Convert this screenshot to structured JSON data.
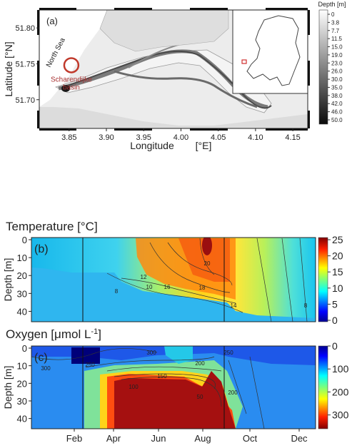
{
  "chart_data": [
    {
      "type": "heatmap",
      "panel_label": "(a)",
      "xlabel": "Longitude",
      "xlabel_unit": "[°E]",
      "ylabel": "Latitude [°N]",
      "x_ticks": [
        "3.85",
        "3.90",
        "3.95",
        "4.00",
        "4.05",
        "4.10",
        "4.15"
      ],
      "y_ticks": [
        "51.80",
        "51.75",
        "51.70"
      ],
      "xlim": [
        3.81,
        4.17
      ],
      "ylim": [
        51.66,
        51.825
      ],
      "colorbar_title": "Depth [m]",
      "colorbar_ticks": [
        "0",
        "3.8",
        "7.7",
        "11.5",
        "15.0",
        "19.0",
        "23.0",
        "26.0",
        "30.0",
        "35.0",
        "38.0",
        "42.0",
        "46.0",
        "50.0"
      ],
      "annotations": {
        "sea": "North Sea",
        "site_line1": "Scharendijke",
        "site_line2": "basin"
      },
      "site_marker": {
        "lon": 3.853,
        "lat": 51.748
      },
      "colors": {
        "marker": "#c0392b",
        "site_text": "#a83232"
      }
    },
    {
      "type": "heatmap",
      "panel_label": "(b)",
      "title": "Temperature [°C]",
      "ylabel": "Depth [m]",
      "y_ticks": [
        "0",
        "10",
        "20",
        "30",
        "40"
      ],
      "ylim": [
        0,
        45
      ],
      "colorbar_ticks": [
        "25",
        "20",
        "15",
        "10",
        "5",
        "0"
      ],
      "colorbar_range": [
        0,
        25
      ],
      "contour_labels": [
        "12",
        "10",
        "8",
        "16",
        "18",
        "20",
        "14",
        "8"
      ]
    },
    {
      "type": "heatmap",
      "panel_label": "(c)",
      "title": "Oxygen [μmol L",
      "title_sup": "-1",
      "title_end": "]",
      "ylabel": "Depth [m]",
      "y_ticks": [
        "0",
        "10",
        "20",
        "30",
        "40"
      ],
      "x_ticks": [
        "Feb",
        "Apr",
        "Jun",
        "Aug",
        "Oct",
        "Dec"
      ],
      "ylim": [
        0,
        45
      ],
      "colorbar_ticks": [
        "300",
        "200",
        "100",
        "0"
      ],
      "colorbar_range": [
        0,
        360
      ],
      "contour_labels": [
        "300",
        "300",
        "250",
        "250",
        "200",
        "200",
        "150",
        "100",
        "50"
      ]
    }
  ]
}
